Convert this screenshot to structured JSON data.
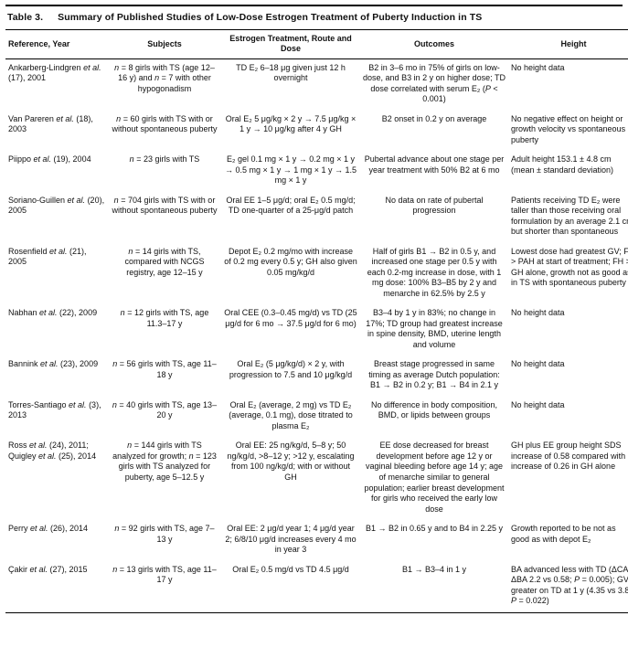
{
  "page": {
    "caption_label": "Table 3.",
    "caption_title": "Summary of Published Studies of Low-Dose Estrogen Treatment of Puberty Induction in TS"
  },
  "table": {
    "columns": [
      {
        "key": "reference",
        "label": "Reference, Year"
      },
      {
        "key": "subjects",
        "label": "Subjects"
      },
      {
        "key": "treatment",
        "label": "Estrogen Treatment, Route and Dose"
      },
      {
        "key": "outcomes",
        "label": "Outcomes"
      },
      {
        "key": "height",
        "label": "Height"
      }
    ],
    "rows": [
      {
        "reference": "Ankarberg-Lindgren et al. (17), 2001",
        "subjects": "n = 8 girls with TS (age 12–16 y) and n = 7 with other hypogonadism",
        "treatment": "TD E₂ 6–18 μg given just 12 h overnight",
        "outcomes": "B2 in 3–6 mo in 75% of girls on low-dose, and B3 in 2 y on higher dose; TD dose correlated with serum E₂ (P < 0.001)",
        "height": "No height data"
      },
      {
        "reference": "Van Pareren et al. (18), 2003",
        "subjects": "n = 60 girls with TS with or without spontaneous puberty",
        "treatment": "Oral E₂ 5 μg/kg × 2 y → 7.5 μg/kg × 1 y → 10 μg/kg after 4 y GH",
        "outcomes": "B2 onset in 0.2 y on average",
        "height": "No negative effect on height or growth velocity vs spontaneous puberty"
      },
      {
        "reference": "Piippo et al. (19), 2004",
        "subjects": "n = 23 girls with TS",
        "treatment": "E₂ gel 0.1 mg × 1 y → 0.2 mg × 1 y → 0.5 mg × 1 y → 1 mg × 1 y → 1.5 mg × 1 y",
        "outcomes": "Pubertal advance about one stage per year treatment with 50% B2 at 6 mo",
        "height": "Adult height 153.1 ± 4.8 cm (mean ± standard deviation)"
      },
      {
        "reference": "Soriano-Guillen et al. (20), 2005",
        "subjects": "n = 704 girls with TS with or without spontaneous puberty",
        "treatment": "Oral EE 1–5 μg/d; oral E₂ 0.5 mg/d; TD one-quarter of a 25-μg/d patch",
        "outcomes": "No data on rate of pubertal progression",
        "height": "Patients receiving TD E₂ were taller than those receiving oral formulation by an average 2.1 cm, but shorter than spontaneous"
      },
      {
        "reference": "Rosenfield et al. (21), 2005",
        "subjects": "n = 14 girls with TS, compared with NCGS registry, age 12–15 y",
        "treatment": "Depot E₂ 0.2 mg/mo with increase of 0.2 mg every 0.5 y; GH also given 0.05 mg/kg/d",
        "outcomes": "Half of girls B1 → B2 in 0.5 y, and increased one stage per 0.5 y with each 0.2-mg increase in dose, with 1 mg dose: 100% B3–B5 by 2 y and menarche in 62.5% by 2.5 y",
        "height": "Lowest dose had greatest GV; FH > PAH at start of treatment; FH > GH alone, growth not as good as in TS with spontaneous puberty"
      },
      {
        "reference": "Nabhan et al. (22), 2009",
        "subjects": "n = 12 girls with TS, age 11.3–17 y",
        "treatment": "Oral CEE (0.3–0.45 mg/d) vs TD (25 μg/d for 6 mo → 37.5 μg/d for 6 mo)",
        "outcomes": "B3–4 by 1 y in 83%; no change in 17%; TD group had greatest increase in spine density, BMD, uterine length and volume",
        "height": "No height data"
      },
      {
        "reference": "Bannink et al. (23), 2009",
        "subjects": "n = 56 girls with TS, age 11–18 y",
        "treatment": "Oral E₂ (5 μg/kg/d) × 2 y, with progression to 7.5 and 10 μg/kg/d",
        "outcomes": "Breast stage progressed in same timing as average Dutch population: B1 → B2 in 0.2 y; B1 → B4 in 2.1 y",
        "height": "No height data"
      },
      {
        "reference": "Torres-Santiago et al. (3), 2013",
        "subjects": "n = 40 girls with TS, age 13–20 y",
        "treatment": "Oral E₂ (average, 2 mg) vs TD E₂ (average, 0.1 mg), dose titrated to plasma E₂",
        "outcomes": "No difference in body composition, BMD, or lipids between groups",
        "height": "No height data"
      },
      {
        "reference": "Ross et al. (24), 2011; Quigley et al. (25), 2014",
        "subjects": "n = 144 girls with TS analyzed for growth; n = 123 girls with TS analyzed for puberty, age 5–12.5 y",
        "treatment": "Oral EE: 25 ng/kg/d, 5–8 y; 50 ng/kg/d, >8–12 y; >12 y, escalating from 100 ng/kg/d; with or without GH",
        "outcomes": "EE dose decreased for breast development before age 12 y or vaginal bleeding before age 14 y; age of menarche similar to general population; earlier breast development for girls who received the early low dose",
        "height": "GH plus EE group height SDS increase of 0.58 compared with increase of 0.26 in GH alone"
      },
      {
        "reference": "Perry et al. (26), 2014",
        "subjects": "n = 92 girls with TS, age 7–13 y",
        "treatment": "Oral EE: 2 μg/d year 1; 4 μg/d year 2; 6/8/10 μg/d increases every 4 mo in year 3",
        "outcomes": "B1 → B2 in 0.65 y and to B4 in 2.25 y",
        "height": "Growth reported to be not as good as with depot E₂"
      },
      {
        "reference": "Çakir et al. (27), 2015",
        "subjects": "n = 13 girls with TS, age 11–17 y",
        "treatment": "Oral E₂ 0.5 mg/d vs TD 4.5 μg/d",
        "outcomes": "B1 → B3–4 in 1 y",
        "height": "BA advanced less with TD (ΔCA/ΔBA 2.2 vs 0.58; P = 0.005); GV greater on TD at 1 y (4.35 vs 3.8; P = 0.022)"
      }
    ]
  }
}
